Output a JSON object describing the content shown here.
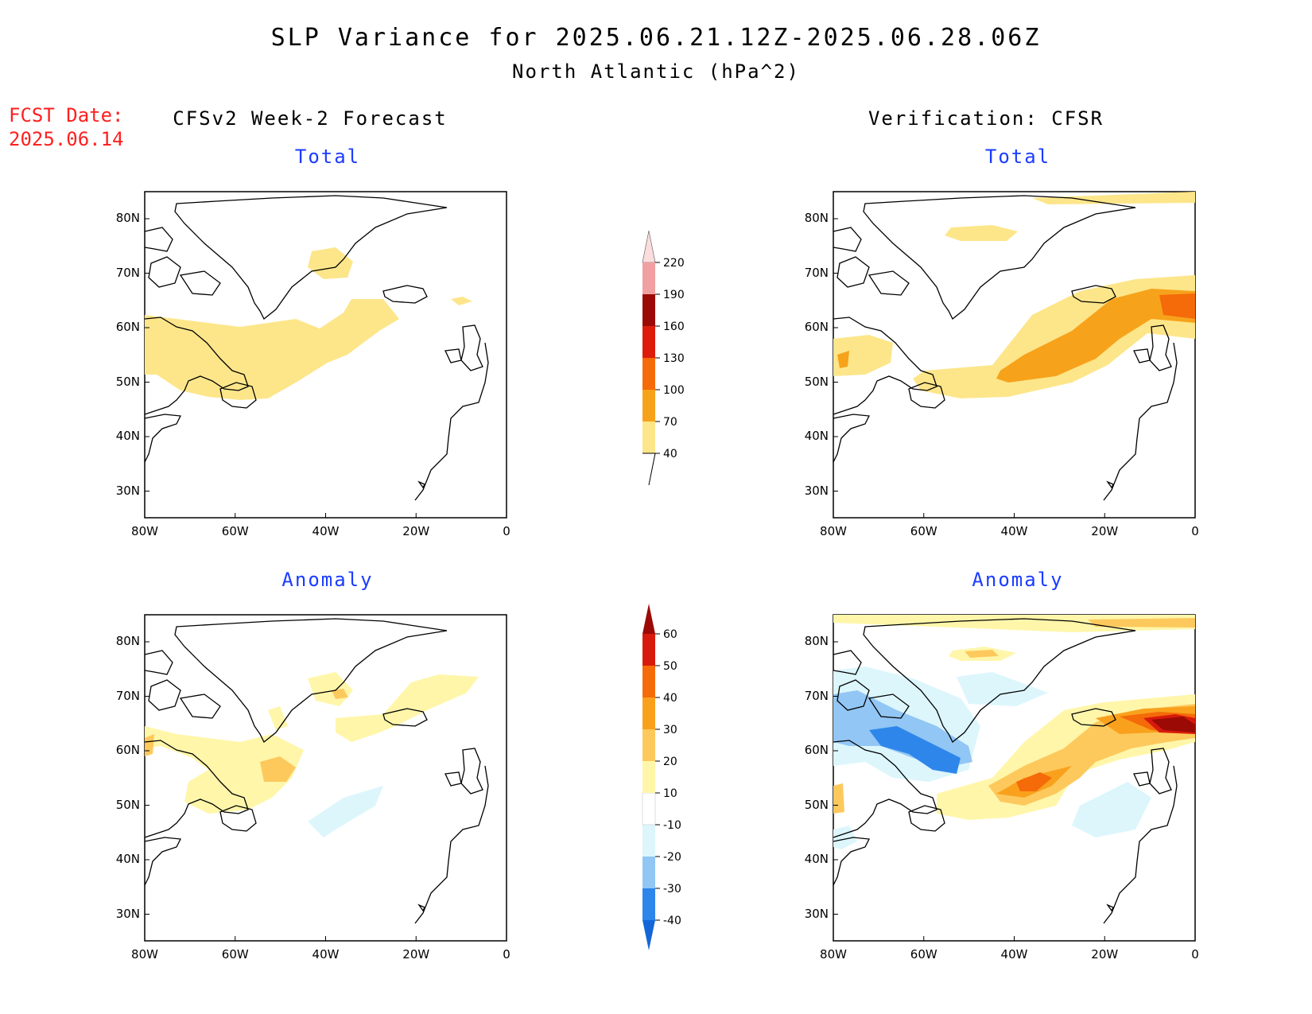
{
  "title": "SLP Variance for 2025.06.21.12Z-2025.06.28.06Z",
  "subtitle": "North Atlantic (hPa^2)",
  "fcst": {
    "label": "FCST Date:",
    "date": "2025.06.14"
  },
  "columns": {
    "left": "CFSv2 Week-2 Forecast",
    "right": "Verification: CFSR"
  },
  "panels": {
    "fc_total": {
      "label": "Total"
    },
    "vf_total": {
      "label": "Total"
    },
    "fc_anom": {
      "label": "Anomaly"
    },
    "vf_anom": {
      "label": "Anomaly"
    }
  },
  "axes": {
    "lon_ticks": [
      "80W",
      "60W",
      "40W",
      "20W",
      "0"
    ],
    "lat_ticks": [
      "80N",
      "70N",
      "60N",
      "50N",
      "40N",
      "30N"
    ]
  },
  "total_colorbar": {
    "levels": [
      "40",
      "70",
      "100",
      "130",
      "160",
      "190",
      "220"
    ],
    "colors": [
      "#fde68a",
      "#f7a21b",
      "#f56a09",
      "#dd1c0c",
      "#9b0a05",
      "#f0a0a0",
      "#fcdcdc"
    ]
  },
  "anomaly_colorbar": {
    "levels": [
      "-40",
      "-30",
      "-20",
      "-10",
      "10",
      "20",
      "30",
      "40",
      "50",
      "60"
    ],
    "colors": [
      "#1466d8",
      "#2f86ea",
      "#92c6f4",
      "#dcf6fc",
      "#ffffff",
      "#fff6aa",
      "#fdc95c",
      "#f9a11d",
      "#f56a09",
      "#d71a0b",
      "#9b0a05"
    ]
  }
}
